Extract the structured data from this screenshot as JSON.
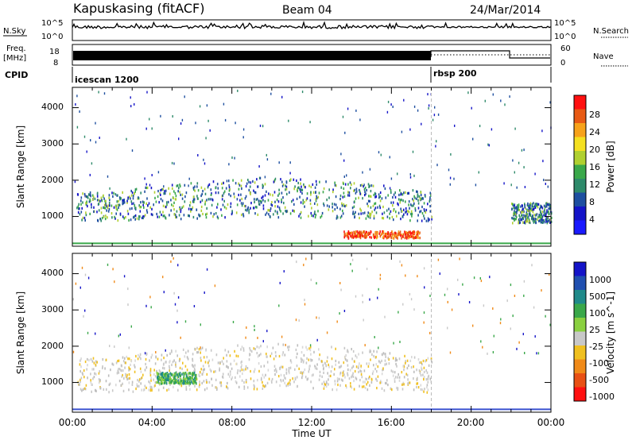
{
  "header": {
    "station": "Kapuskasing (fitACF)",
    "beam": "Beam 04",
    "date": "24/Mar/2014"
  },
  "noise_panel": {
    "left_label": "N.Sky",
    "left_ticks": [
      "10^5",
      "10^0"
    ],
    "right_ticks": [
      "10^5",
      "10^0"
    ],
    "right_label": "N.Search"
  },
  "freq_panel": {
    "left_label_1": "Freq.",
    "left_label_2": "[MHz]",
    "left_ticks": [
      "18",
      "8"
    ],
    "right_ticks": [
      "60",
      "0"
    ],
    "right_label": "Nave"
  },
  "cpid": {
    "label": "CPID",
    "segments": [
      {
        "name": "icescan 1200",
        "start_hr": 0,
        "end_hr": 18
      },
      {
        "name": "rbsp 200",
        "start_hr": 18,
        "end_hr": 24
      }
    ]
  },
  "x_axis": {
    "label": "Time UT",
    "ticks": [
      "00:00",
      "04:00",
      "08:00",
      "12:00",
      "16:00",
      "20:00",
      "00:00"
    ]
  },
  "chart_data": [
    {
      "type": "heatmap",
      "title": "",
      "xlabel": "",
      "ylabel": "Slant Range [km]",
      "xlim": [
        0,
        24
      ],
      "ylim": [
        180,
        4560
      ],
      "y_ticks": [
        "4000",
        "3000",
        "2000",
        "1000"
      ],
      "colorbar_label": "Power [dB]",
      "colorbar_ticks": [
        "28",
        "24",
        "20",
        "16",
        "12",
        "8",
        "4"
      ],
      "colorbar_colors": [
        "#ff1010",
        "#e85a14",
        "#f7a21a",
        "#f4e020",
        "#b0d030",
        "#3aa84a",
        "#2e8a6a",
        "#1e4fa0",
        "#1414c8",
        "#1a1aff"
      ],
      "bands": [
        {
          "name": "main-echo",
          "x": [
            0.2,
            18.0
          ],
          "y": [
            1050,
            1700
          ],
          "power_db": [
            4,
            16
          ]
        },
        {
          "name": "ground-scatter",
          "x": [
            13.6,
            17.4
          ],
          "y": [
            430,
            620
          ],
          "power_db": [
            20,
            28
          ]
        },
        {
          "name": "late-echo",
          "x": [
            22.0,
            24.0
          ],
          "y": [
            850,
            1400
          ],
          "power_db": [
            4,
            12
          ]
        }
      ]
    },
    {
      "type": "heatmap",
      "title": "",
      "xlabel": "Time UT",
      "ylabel": "Slant Range [km]",
      "xlim": [
        0,
        24
      ],
      "ylim": [
        180,
        4560
      ],
      "y_ticks": [
        "4000",
        "3000",
        "2000",
        "1000"
      ],
      "colorbar_label": "Velocity [m s^-1]",
      "colorbar_ticks": [
        "1000",
        "500",
        "100",
        "25",
        "-25",
        "-100",
        "-500",
        "-1000"
      ],
      "colorbar_colors": [
        "#1414c8",
        "#2050b0",
        "#208a8a",
        "#3aa84a",
        "#8ad040",
        "#c8c8c8",
        "#f0c020",
        "#f08a18",
        "#e85014",
        "#ff1010"
      ],
      "bands": [
        {
          "name": "low-velocity",
          "x": [
            0.2,
            18.0
          ],
          "y": [
            900,
            1700
          ],
          "velocity": [
            -25,
            25
          ]
        },
        {
          "name": "green-patch",
          "x": [
            4.2,
            6.2
          ],
          "y": [
            1000,
            1300
          ],
          "velocity": [
            100,
            500
          ]
        }
      ]
    }
  ]
}
